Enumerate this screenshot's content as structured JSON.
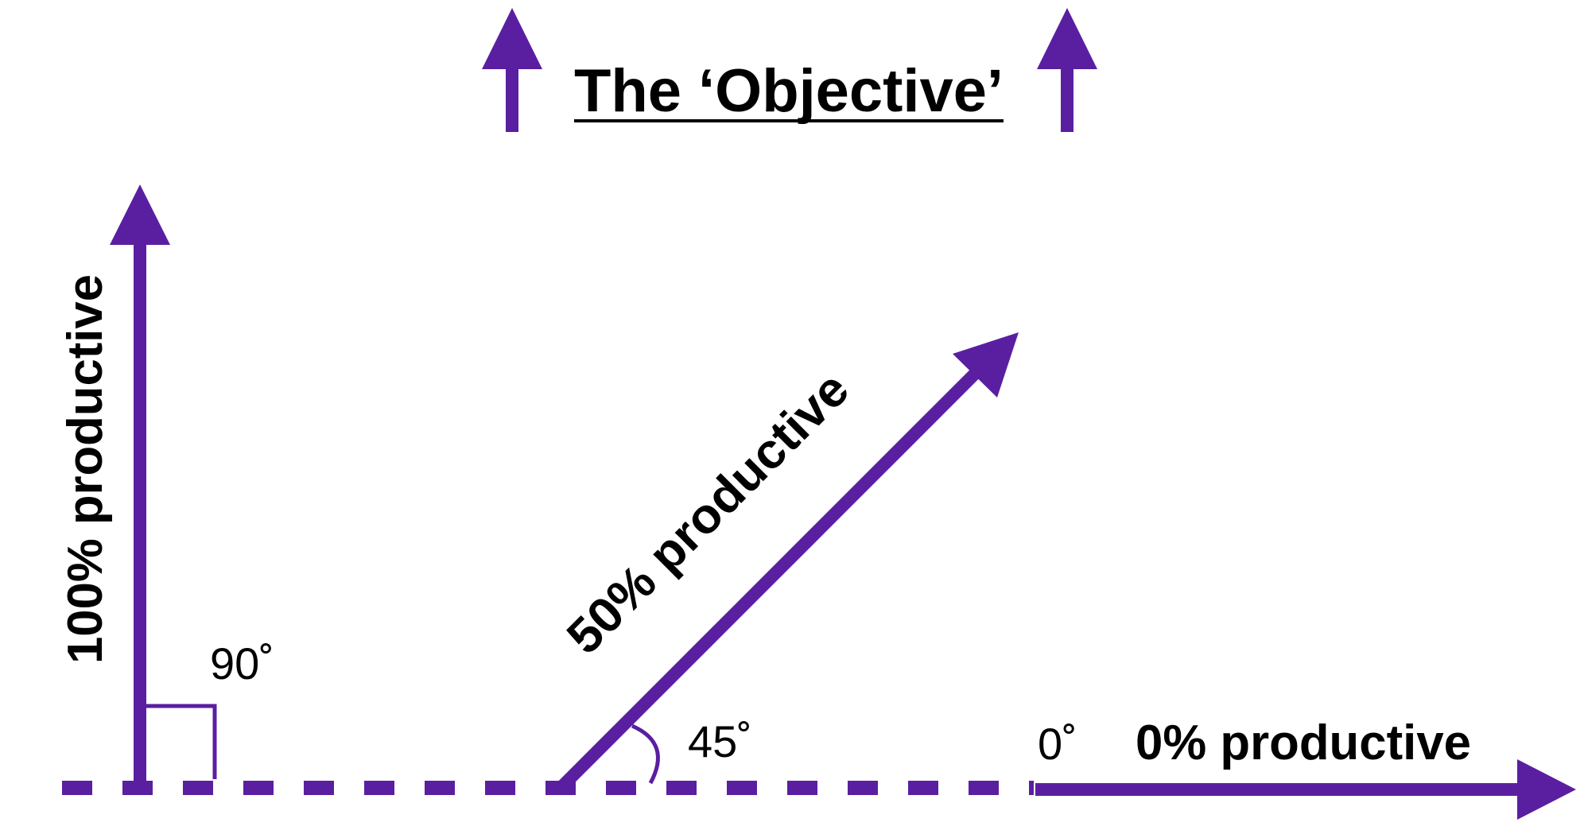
{
  "title": "The ‘Objective’",
  "colors": {
    "arrow": "#5a1fa0",
    "text": "#000000",
    "background": "#ffffff"
  },
  "vectors": {
    "vertical": {
      "label": "100% productive",
      "angle_label": "90˚"
    },
    "diagonal": {
      "label": "50% productive",
      "angle_label": "45˚"
    },
    "horizontal": {
      "label": "0% productive",
      "angle_label": "0˚"
    }
  }
}
